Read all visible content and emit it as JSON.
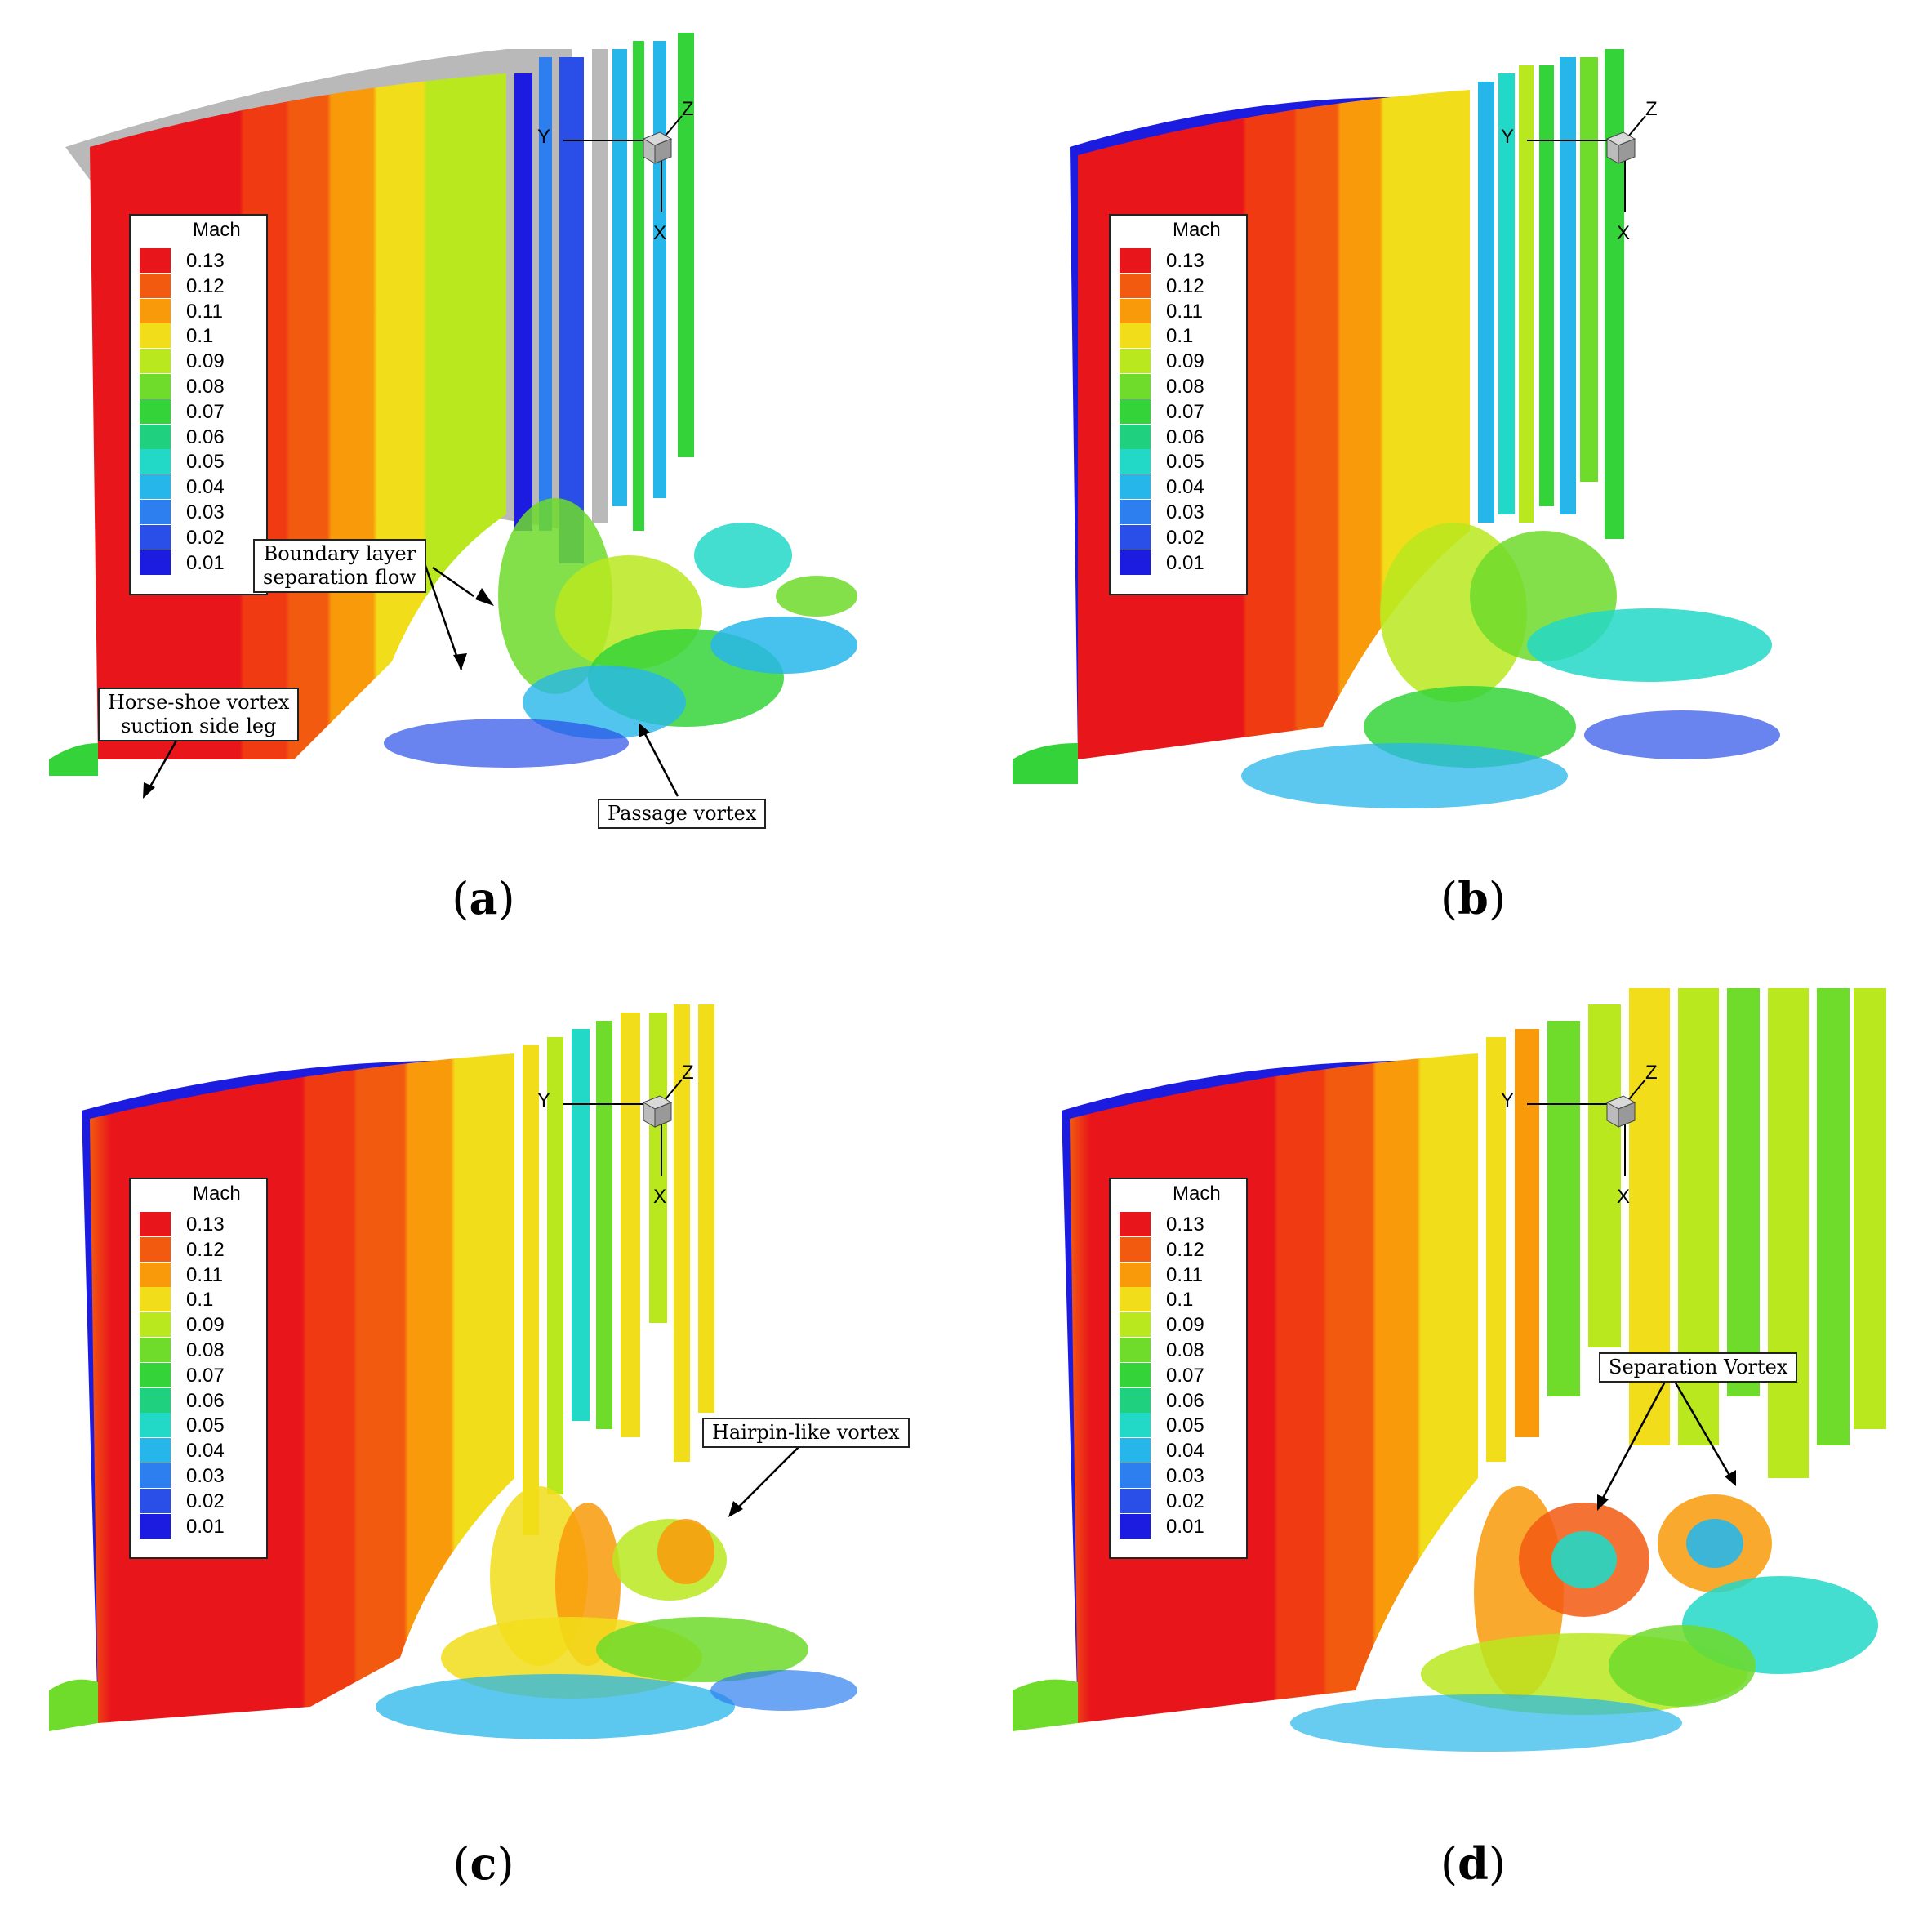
{
  "legend": {
    "title": "Mach",
    "levels": [
      {
        "value": "0.13",
        "color": "#e8161b"
      },
      {
        "value": "0.12",
        "color": "#f25a10"
      },
      {
        "value": "0.11",
        "color": "#f99a0a"
      },
      {
        "value": "0.1",
        "color": "#f2dd1a"
      },
      {
        "value": "0.09",
        "color": "#b9e81e"
      },
      {
        "value": "0.08",
        "color": "#6fdb2a"
      },
      {
        "value": "0.07",
        "color": "#35d33a"
      },
      {
        "value": "0.06",
        "color": "#1fd07f"
      },
      {
        "value": "0.05",
        "color": "#22d8c7"
      },
      {
        "value": "0.04",
        "color": "#27b6ea"
      },
      {
        "value": "0.03",
        "color": "#2d7ff0"
      },
      {
        "value": "0.02",
        "color": "#2a4fe8"
      },
      {
        "value": "0.01",
        "color": "#1c1ce0"
      }
    ]
  },
  "axes": {
    "y": "Y",
    "z": "Z",
    "x": "X"
  },
  "panels": [
    {
      "id": "a",
      "caption": "a",
      "annotations": {
        "boundary_layer": {
          "line1": "Boundary layer",
          "line2": "separation flow"
        },
        "horseshoe": {
          "line1": "Horse-shoe vortex",
          "line2": "suction side leg"
        },
        "passage": {
          "line1": "Passage vortex"
        }
      }
    },
    {
      "id": "b",
      "caption": "b"
    },
    {
      "id": "c",
      "caption": "c",
      "annotations": {
        "hairpin": {
          "line1": "Hairpin-like vortex"
        }
      }
    },
    {
      "id": "d",
      "caption": "d",
      "annotations": {
        "separation": {
          "line1": "Separation Vortex"
        }
      }
    }
  ]
}
